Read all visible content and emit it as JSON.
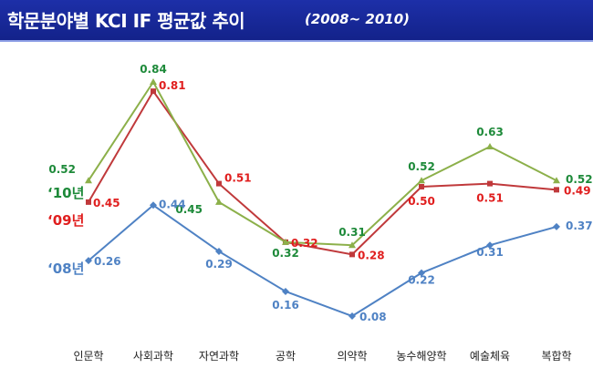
{
  "header": {
    "title": "학문분야별 KCI IF 평균값 추이",
    "subtitle": "(2008~ 2010)"
  },
  "colors": {
    "title_bg": "#1a2ba0",
    "series_2010": "#8cb04a",
    "series_2009": "#c0393b",
    "series_2008": "#4f82c4",
    "label_2010": "#1e8a3a",
    "label_2009": "#e01e1e",
    "label_2008": "#4f82c4"
  },
  "chart_data": {
    "type": "line",
    "title": "학문분야별 KCI IF 평균값 추이",
    "subtitle": "(2008~ 2010)",
    "categories": [
      "인문학",
      "사회과학",
      "자연과학",
      "공학",
      "의약학",
      "농수해양학",
      "예술체육",
      "복합학"
    ],
    "series": [
      {
        "name": "‘10년",
        "values": [
          0.52,
          0.84,
          0.45,
          0.32,
          0.31,
          0.52,
          0.63,
          0.52
        ]
      },
      {
        "name": "‘09년",
        "values": [
          0.45,
          0.81,
          0.51,
          0.32,
          0.28,
          0.5,
          0.51,
          0.49
        ]
      },
      {
        "name": "‘08년",
        "values": [
          0.26,
          0.44,
          0.29,
          0.16,
          0.08,
          0.22,
          0.31,
          0.37
        ]
      }
    ],
    "xlabel": "",
    "ylabel": "",
    "grid": false,
    "axes_visible": false,
    "legend": "left"
  }
}
